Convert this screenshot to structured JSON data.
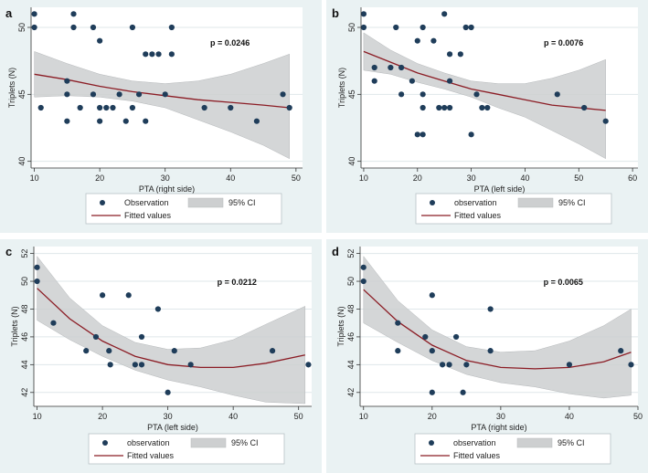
{
  "colors": {
    "panel_bg": "#eaf2f3",
    "plot_bg": "#ffffff",
    "grid": "#dfe7ea",
    "point": "#1f3d5a",
    "fit_line": "#8b1c24",
    "ci_band": "#cdcfd0",
    "ci_edge": "#b5b8ba",
    "legend_border": "#b8c2c6"
  },
  "chart_data": [
    {
      "panel": "a",
      "type": "scatter",
      "xlabel": "PTA (right side)",
      "ylabel": "Triplets (N)",
      "xlim": [
        9.5,
        51
      ],
      "ylim": [
        39.5,
        51.5
      ],
      "xticks": [
        10,
        20,
        30,
        40,
        50
      ],
      "yticks": [
        40,
        45,
        50
      ],
      "annotation": "p = 0.0246",
      "legend": {
        "observation_label": "Observation",
        "fit_label": "Fitted values",
        "ci_label": "95% CI"
      },
      "points": [
        [
          10,
          51
        ],
        [
          10,
          50
        ],
        [
          11,
          44
        ],
        [
          15,
          45
        ],
        [
          15,
          43
        ],
        [
          15,
          46
        ],
        [
          16,
          51
        ],
        [
          16,
          50
        ],
        [
          17,
          44
        ],
        [
          19,
          50
        ],
        [
          19,
          45
        ],
        [
          20,
          49
        ],
        [
          20,
          44
        ],
        [
          20,
          43
        ],
        [
          21,
          44
        ],
        [
          22,
          44
        ],
        [
          23,
          45
        ],
        [
          24,
          43
        ],
        [
          25,
          50
        ],
        [
          25,
          44
        ],
        [
          26,
          45
        ],
        [
          27,
          43
        ],
        [
          27,
          48
        ],
        [
          28,
          48
        ],
        [
          29,
          48
        ],
        [
          30,
          45
        ],
        [
          31,
          50
        ],
        [
          31,
          48
        ],
        [
          36,
          44
        ],
        [
          40,
          44
        ],
        [
          44,
          43
        ],
        [
          48,
          45
        ],
        [
          49,
          44
        ]
      ],
      "fit": {
        "x": [
          10,
          15,
          20,
          25,
          30,
          35,
          40,
          45,
          49
        ],
        "y": [
          46.5,
          46.1,
          45.6,
          45.2,
          44.9,
          44.6,
          44.4,
          44.2,
          44.0
        ]
      },
      "ci_upper": {
        "x": [
          10,
          15,
          20,
          25,
          30,
          35,
          40,
          45,
          49
        ],
        "y": [
          48.2,
          47.3,
          46.5,
          46.0,
          45.8,
          46.0,
          46.5,
          47.3,
          48.0
        ]
      },
      "ci_lower": {
        "x": [
          10,
          15,
          20,
          25,
          30,
          35,
          40,
          45,
          49
        ],
        "y": [
          44.8,
          44.9,
          44.8,
          44.5,
          44.0,
          43.1,
          42.2,
          41.2,
          40.2
        ]
      }
    },
    {
      "panel": "b",
      "type": "scatter",
      "xlabel": "PTA (left side)",
      "ylabel": "Triplets (N)",
      "xlim": [
        9.5,
        61
      ],
      "ylim": [
        39.5,
        51.5
      ],
      "xticks": [
        10,
        20,
        30,
        40,
        50,
        60
      ],
      "yticks": [
        40,
        45,
        50
      ],
      "annotation": "p = 0.0076",
      "legend": {
        "observation_label": "observation",
        "fit_label": "Fitted values",
        "ci_label": "95% CI"
      },
      "points": [
        [
          10,
          51
        ],
        [
          10,
          50
        ],
        [
          12,
          47
        ],
        [
          12,
          46
        ],
        [
          15,
          47
        ],
        [
          16,
          50
        ],
        [
          17,
          47
        ],
        [
          17,
          45
        ],
        [
          19,
          46
        ],
        [
          20,
          49
        ],
        [
          20,
          42
        ],
        [
          21,
          50
        ],
        [
          21,
          45
        ],
        [
          21,
          44
        ],
        [
          21,
          42
        ],
        [
          23,
          49
        ],
        [
          24,
          44
        ],
        [
          25,
          51
        ],
        [
          25,
          44
        ],
        [
          26,
          48
        ],
        [
          26,
          46
        ],
        [
          26,
          44
        ],
        [
          28,
          48
        ],
        [
          29,
          50
        ],
        [
          30,
          50
        ],
        [
          30,
          42
        ],
        [
          31,
          45
        ],
        [
          32,
          44
        ],
        [
          33,
          44
        ],
        [
          46,
          45
        ],
        [
          51,
          44
        ],
        [
          55,
          43
        ]
      ],
      "fit": {
        "x": [
          10,
          15,
          20,
          25,
          30,
          35,
          40,
          45,
          50,
          55
        ],
        "y": [
          48.2,
          47.4,
          46.6,
          46.0,
          45.4,
          45.0,
          44.6,
          44.2,
          44.0,
          43.8
        ]
      },
      "ci_upper": {
        "x": [
          10,
          15,
          20,
          25,
          30,
          35,
          40,
          45,
          50,
          55
        ],
        "y": [
          49.6,
          48.3,
          47.3,
          46.6,
          46.0,
          45.8,
          45.8,
          46.2,
          46.8,
          47.6
        ]
      },
      "ci_lower": {
        "x": [
          10,
          15,
          20,
          25,
          30,
          35,
          40,
          45,
          50,
          55
        ],
        "y": [
          46.8,
          46.5,
          45.9,
          45.4,
          44.8,
          44.0,
          43.3,
          42.3,
          41.3,
          40.2
        ]
      }
    },
    {
      "panel": "c",
      "type": "scatter",
      "xlabel": "PTA (left side)",
      "ylabel": "Triplets (N)",
      "xlim": [
        9.5,
        52
      ],
      "ylim": [
        41,
        52.5
      ],
      "xticks": [
        10,
        20,
        30,
        40,
        50
      ],
      "yticks": [
        42,
        44,
        46,
        48,
        50,
        52
      ],
      "annotation": "p = 0.0212",
      "legend": {
        "observation_label": "observation",
        "fit_label": "Fitted values",
        "ci_label": "95% CI"
      },
      "points": [
        [
          10,
          51
        ],
        [
          10,
          50
        ],
        [
          12.5,
          47
        ],
        [
          17.5,
          45
        ],
        [
          19,
          46
        ],
        [
          20,
          49
        ],
        [
          21,
          45
        ],
        [
          21.2,
          44
        ],
        [
          24,
          49
        ],
        [
          25,
          44
        ],
        [
          26,
          46
        ],
        [
          26,
          44
        ],
        [
          28.5,
          48
        ],
        [
          30,
          42
        ],
        [
          31,
          45
        ],
        [
          33.5,
          44
        ],
        [
          46,
          45
        ],
        [
          51.5,
          44
        ]
      ],
      "fit": {
        "x": [
          10,
          15,
          20,
          25,
          30,
          35,
          40,
          45,
          51
        ],
        "y": [
          49.5,
          47.3,
          45.7,
          44.6,
          44.0,
          43.8,
          43.8,
          44.1,
          44.7
        ]
      },
      "ci_upper": {
        "x": [
          10,
          15,
          20,
          25,
          30,
          35,
          40,
          45,
          51
        ],
        "y": [
          51.8,
          48.8,
          46.8,
          45.6,
          45.1,
          45.2,
          45.8,
          46.9,
          48.2
        ]
      },
      "ci_lower": {
        "x": [
          10,
          15,
          20,
          25,
          30,
          35,
          40,
          45,
          51
        ],
        "y": [
          47.2,
          45.8,
          44.6,
          43.6,
          42.9,
          42.4,
          41.8,
          41.3,
          41.2
        ]
      }
    },
    {
      "panel": "d",
      "type": "scatter",
      "xlabel": "PTA (right side)",
      "ylabel": "Triplets (N)",
      "xlim": [
        9.5,
        50
      ],
      "ylim": [
        41,
        52.5
      ],
      "xticks": [
        10,
        20,
        30,
        40,
        50
      ],
      "yticks": [
        42,
        44,
        46,
        48,
        50,
        52
      ],
      "annotation": "p = 0.0065",
      "legend": {
        "observation_label": "observation",
        "fit_label": "Fitted values",
        "ci_label": "95% CI"
      },
      "points": [
        [
          10,
          51
        ],
        [
          10,
          50
        ],
        [
          15,
          47
        ],
        [
          15,
          45
        ],
        [
          19,
          46
        ],
        [
          20,
          49
        ],
        [
          20,
          45
        ],
        [
          20,
          42
        ],
        [
          21.5,
          44
        ],
        [
          22.5,
          44
        ],
        [
          23.5,
          46
        ],
        [
          24.5,
          42
        ],
        [
          25,
          44
        ],
        [
          28.5,
          48
        ],
        [
          28.5,
          45
        ],
        [
          40,
          44
        ],
        [
          47.5,
          45
        ],
        [
          49,
          44
        ]
      ],
      "fit": {
        "x": [
          10,
          15,
          20,
          25,
          30,
          35,
          40,
          45,
          49
        ],
        "y": [
          49.4,
          47.1,
          45.4,
          44.3,
          43.8,
          43.7,
          43.8,
          44.2,
          44.9
        ]
      },
      "ci_upper": {
        "x": [
          10,
          15,
          20,
          25,
          30,
          35,
          40,
          45,
          49
        ],
        "y": [
          51.8,
          48.6,
          46.5,
          45.3,
          44.9,
          45.0,
          45.7,
          46.8,
          48.0
        ]
      },
      "ci_lower": {
        "x": [
          10,
          15,
          20,
          25,
          30,
          35,
          40,
          45,
          49
        ],
        "y": [
          47.0,
          45.6,
          44.3,
          43.3,
          42.7,
          42.4,
          41.9,
          41.6,
          41.8
        ]
      }
    }
  ]
}
